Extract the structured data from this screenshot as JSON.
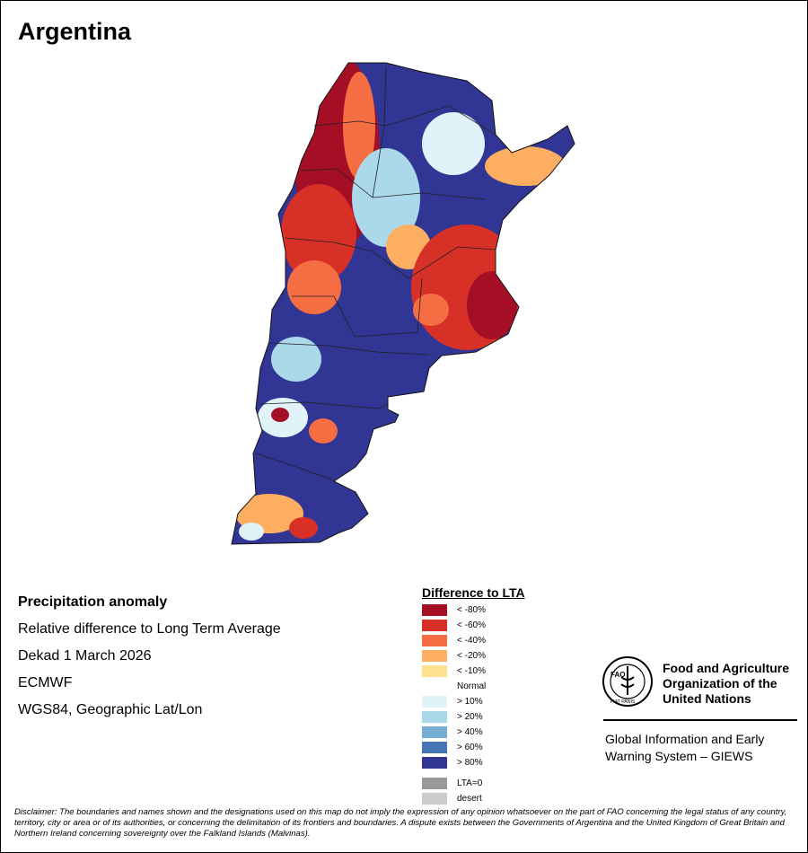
{
  "title": "Argentina",
  "info": {
    "heading": "Precipitation anomaly",
    "line1": "Relative difference to Long Term Average",
    "line2": "Dekad 1 March 2026",
    "line3": "ECMWF",
    "line4": "WGS84, Geographic Lat/Lon"
  },
  "legend": {
    "title": "Difference to LTA",
    "items": [
      {
        "label": "< -80%",
        "color": "#a50f26"
      },
      {
        "label": "< -60%",
        "color": "#d73027"
      },
      {
        "label": "< -40%",
        "color": "#f46d43"
      },
      {
        "label": "< -20%",
        "color": "#fdae61"
      },
      {
        "label": "< -10%",
        "color": "#fee090"
      },
      {
        "label": "Normal",
        "color": "#ffffff"
      },
      {
        "label": "> 10%",
        "color": "#e0f3f8"
      },
      {
        "label": "> 20%",
        "color": "#abd9e9"
      },
      {
        "label": "> 40%",
        "color": "#74add1"
      },
      {
        "label": "> 60%",
        "color": "#4575b4"
      },
      {
        "label": "> 80%",
        "color": "#313695"
      },
      {
        "label": "LTA=0",
        "color": "#999999"
      },
      {
        "label": "desert",
        "color": "#cccccc"
      }
    ]
  },
  "org": {
    "logo_text": "FAO",
    "logo_motto": "FIAT PANIS",
    "name_line1": "Food and Agriculture",
    "name_line2": "Organization of the",
    "name_line3": "United Nations",
    "system_line1": "Global Information and Early",
    "system_line2": "Warning System – GIEWS"
  },
  "disclaimer": "Disclaimer: The boundaries and names shown and the designations used on this map do not imply the expression of any opinion whatsoever on the part of FAO concerning the legal status of any country, territory, city or area or of its authorities, or concerning the delimitation of its frontiers and boundaries. A dispute exists between the Governments of Argentina and the United Kingdom of Great Britain and Northern Ireland concerning sovereignty over the Falkland Islands (Malvinas)."
}
